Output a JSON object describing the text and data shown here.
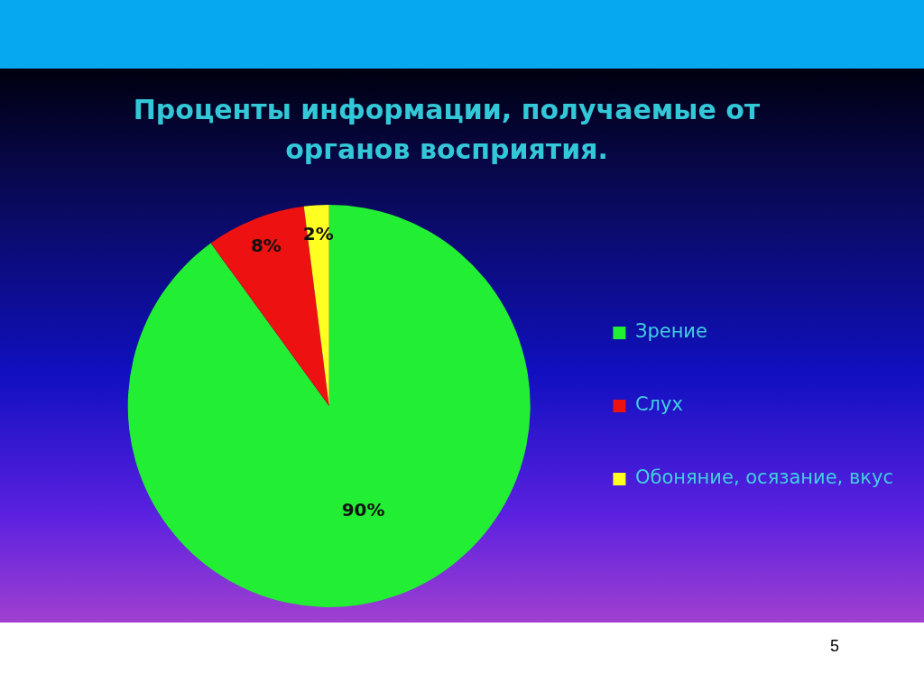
{
  "chart_data": {
    "type": "pie",
    "title": "Проценты информации, получаемые от органов восприятия.",
    "categories": [
      "Зрение",
      "Слух",
      "Обоняние, осязание, вкус"
    ],
    "values": [
      90,
      8,
      2
    ],
    "colors": [
      "#22ee33",
      "#ee1111",
      "#ffff22"
    ],
    "value_labels": [
      "90%",
      "8%",
      "2%"
    ],
    "legend": "right",
    "annotations": [
      "5"
    ]
  }
}
